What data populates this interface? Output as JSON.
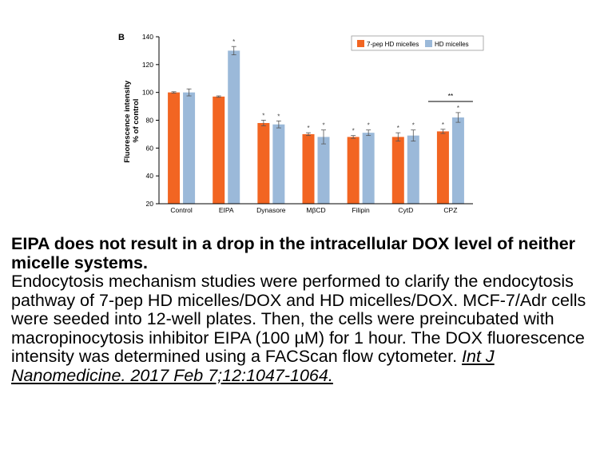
{
  "chart_data": {
    "type": "bar",
    "panel_label": "B",
    "ylabel_line1": "Fluorescence intensity",
    "ylabel_line2": "% of control",
    "ylim": [
      20,
      140
    ],
    "yticks": [
      20,
      40,
      60,
      80,
      100,
      120,
      140
    ],
    "categories": [
      "Control",
      "EIPA",
      "Dynasore",
      "MβCD",
      "Filipin",
      "CytD",
      "CPZ"
    ],
    "series": [
      {
        "name": "7-pep HD micelles",
        "color": "#f26522",
        "values": [
          100,
          97,
          78,
          70,
          68,
          68,
          72
        ],
        "errors": [
          0.5,
          0.5,
          2,
          1,
          1,
          3,
          1.5
        ],
        "marks": [
          "",
          "",
          "*",
          "*",
          "*",
          "*",
          "*"
        ]
      },
      {
        "name": "HD micelles",
        "color": "#9bb9d9",
        "values": [
          100,
          130,
          77,
          68,
          71,
          69,
          82
        ],
        "errors": [
          2.5,
          3,
          2.5,
          5,
          2,
          4,
          3.5
        ],
        "marks": [
          "",
          "*",
          "*",
          "*",
          "*",
          "*",
          "*"
        ]
      }
    ],
    "annotation": {
      "text": "**",
      "category": "CPZ"
    },
    "legend_position": "top-right",
    "grid": false
  },
  "caption": {
    "title": "EIPA does not result in a drop in the intracellular DOX level of neither micelle systems.",
    "body": "Endocytosis mechanism studies were performed to clarify the endocytosis pathway of 7-pep HD micelles/DOX and HD micelles/DOX. MCF-7/Adr cells were seeded into 12-well plates. Then, the cells were preincubated with macropinocytosis inhibitor EIPA (100 µM) for 1 hour. The DOX fluorescence intensity was determined using a FACScan flow cytometer. ",
    "citation": "Int J Nanomedicine. 2017 Feb 7;12:1047-1064."
  }
}
